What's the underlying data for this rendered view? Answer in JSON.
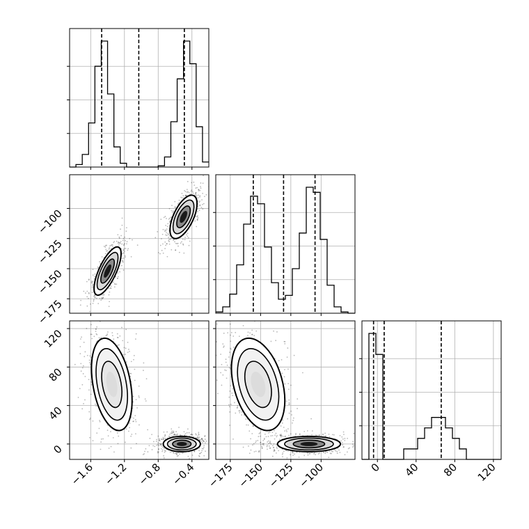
{
  "chart_data": {
    "type": "corner",
    "title": "",
    "parameters": [
      {
        "axis_range": [
          -1.85,
          -0.2
        ],
        "ticks": [
          -1.6,
          -1.2,
          -0.8,
          -0.4
        ],
        "tick_labels": [
          "−1.6",
          "−1.2",
          "−0.8",
          "−0.4"
        ],
        "quantiles": [
          -1.47,
          -1.03,
          -0.49
        ],
        "histogram": {
          "bin_edges": [
            -1.85,
            -1.775,
            -1.7,
            -1.625,
            -1.55,
            -1.475,
            -1.4,
            -1.325,
            -1.25,
            -1.175,
            -1.1,
            -1.025,
            -0.95,
            -0.875,
            -0.8,
            -0.725,
            -0.65,
            -0.575,
            -0.5,
            -0.425,
            -0.35,
            -0.275,
            -0.2
          ],
          "counts": [
            0,
            2,
            10,
            35,
            80,
            100,
            58,
            16,
            3,
            0,
            0,
            0,
            0,
            0,
            1,
            8,
            36,
            70,
            100,
            82,
            32,
            4
          ]
        }
      },
      {
        "axis_range": [
          -187,
          -72
        ],
        "ticks": [
          -175,
          -150,
          -125,
          -100
        ],
        "tick_labels": [
          "−175",
          "−150",
          "−125",
          "−100"
        ],
        "quantiles": [
          -156,
          -131,
          -105
        ],
        "histogram": {
          "bin_edges": [
            -187,
            -181.25,
            -175.5,
            -169.75,
            -164,
            -158.25,
            -152.5,
            -146.75,
            -141,
            -135.25,
            -129.5,
            -123.75,
            -118,
            -112.25,
            -106.5,
            -100.75,
            -95,
            -89.25,
            -83.5,
            -77.75,
            -72
          ],
          "counts": [
            1,
            5,
            15,
            38,
            70,
            92,
            86,
            52,
            24,
            11,
            14,
            35,
            63,
            99,
            95,
            58,
            22,
            5,
            1,
            0
          ]
        }
      },
      {
        "axis_range": [
          -16,
          128
        ],
        "ticks": [
          0,
          40,
          80,
          120
        ],
        "tick_labels": [
          "0",
          "40",
          "80",
          "120"
        ],
        "quantiles": [
          -4,
          7,
          66
        ],
        "histogram": {
          "bin_edges": [
            -16,
            -8.8,
            -1.6,
            5.6,
            12.8,
            20,
            27.2,
            34.4,
            41.6,
            48.8,
            56,
            63.2,
            70.4,
            77.6,
            84.8,
            92,
            99.2,
            106.4,
            113.6,
            120.8,
            128
          ],
          "counts": [
            0,
            12,
            10,
            0,
            0,
            0,
            1,
            1,
            2,
            3,
            4,
            4,
            3,
            2,
            1,
            0,
            0,
            0,
            0,
            0
          ]
        }
      }
    ],
    "pairs": [
      {
        "x_param": 0,
        "y_param": 1,
        "clusters": [
          {
            "center": [
              -1.4,
              -152
            ],
            "spread": [
              0.08,
              10
            ],
            "corr": 0.72,
            "density": "high"
          },
          {
            "center": [
              -0.5,
              -107
            ],
            "spread": [
              0.08,
              9
            ],
            "corr": 0.6,
            "density": "high"
          }
        ]
      },
      {
        "x_param": 0,
        "y_param": 2,
        "clusters": [
          {
            "center": [
              -1.35,
              62
            ],
            "spread": [
              0.12,
              24
            ],
            "corr": -0.35,
            "density": "low"
          },
          {
            "center": [
              -0.52,
              0
            ],
            "spread": [
              0.11,
              4
            ],
            "corr": 0,
            "density": "high"
          }
        ]
      },
      {
        "x_param": 1,
        "y_param": 2,
        "clusters": [
          {
            "center": [
              -152,
              62
            ],
            "spread": [
              11,
              24
            ],
            "corr": -0.35,
            "density": "low"
          },
          {
            "center": [
              -110,
              0
            ],
            "spread": [
              13,
              4
            ],
            "corr": 0,
            "density": "high"
          }
        ]
      }
    ],
    "grid": true,
    "quantile_line_style": "dashed"
  }
}
